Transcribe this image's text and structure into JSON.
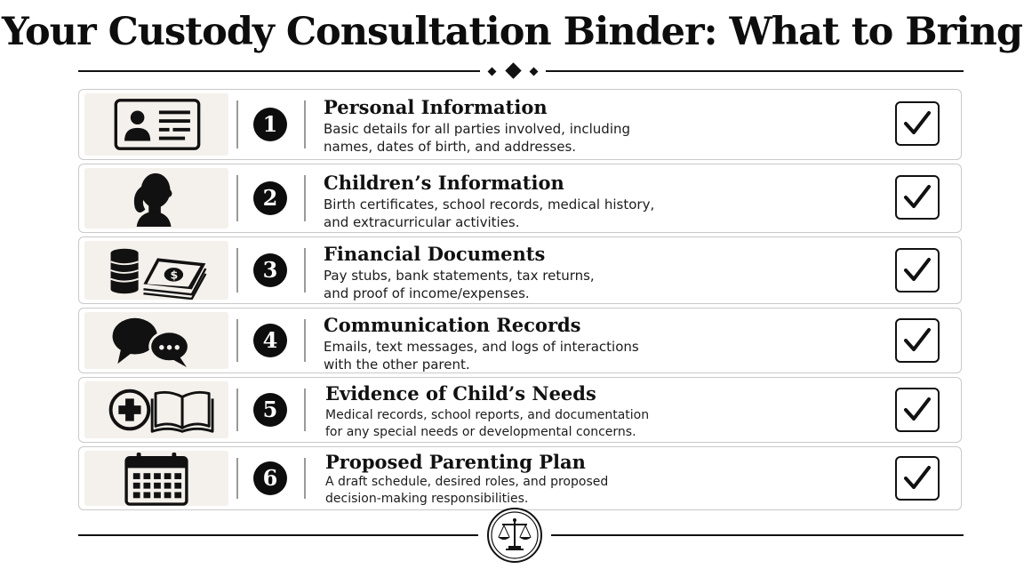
{
  "title": "Your Custody Consultation Binder: What to Bring",
  "items": [
    {
      "number": "1",
      "icon": "id-card-icon",
      "title": "Personal Information",
      "desc_line1": "Basic details for all parties involved, including",
      "desc_line2": "names, dates of birth, and addresses.",
      "checked": true
    },
    {
      "number": "2",
      "icon": "child-silhouette-icon",
      "title": "Children’s Information",
      "desc_line1": "Birth certificates, school records, medical history,",
      "desc_line2": "and extracurricular activities.",
      "checked": true
    },
    {
      "number": "3",
      "icon": "money-coins-icon",
      "title": "Financial Documents",
      "desc_line1": "Pay stubs, bank statements, tax returns,",
      "desc_line2": "and proof of income/expenses.",
      "checked": true
    },
    {
      "number": "4",
      "icon": "speech-bubbles-icon",
      "title": "Communication Records",
      "desc_line1": "Emails, text messages, and logs of interactions",
      "desc_line2": "with the other parent.",
      "checked": true
    },
    {
      "number": "5",
      "icon": "medical-book-icon",
      "title": "Evidence of Child’s Needs",
      "desc_line1": "Medical records, school reports, and documentation",
      "desc_line2": "for any special needs or developmental concerns.",
      "checked": true
    },
    {
      "number": "6",
      "icon": "calendar-icon",
      "title": "Proposed Parenting Plan",
      "desc_line1": "A draft schedule, desired roles, and proposed",
      "desc_line2": "decision-making responsibilities.",
      "checked": true
    }
  ],
  "footer_icon": "scales-of-justice-icon"
}
